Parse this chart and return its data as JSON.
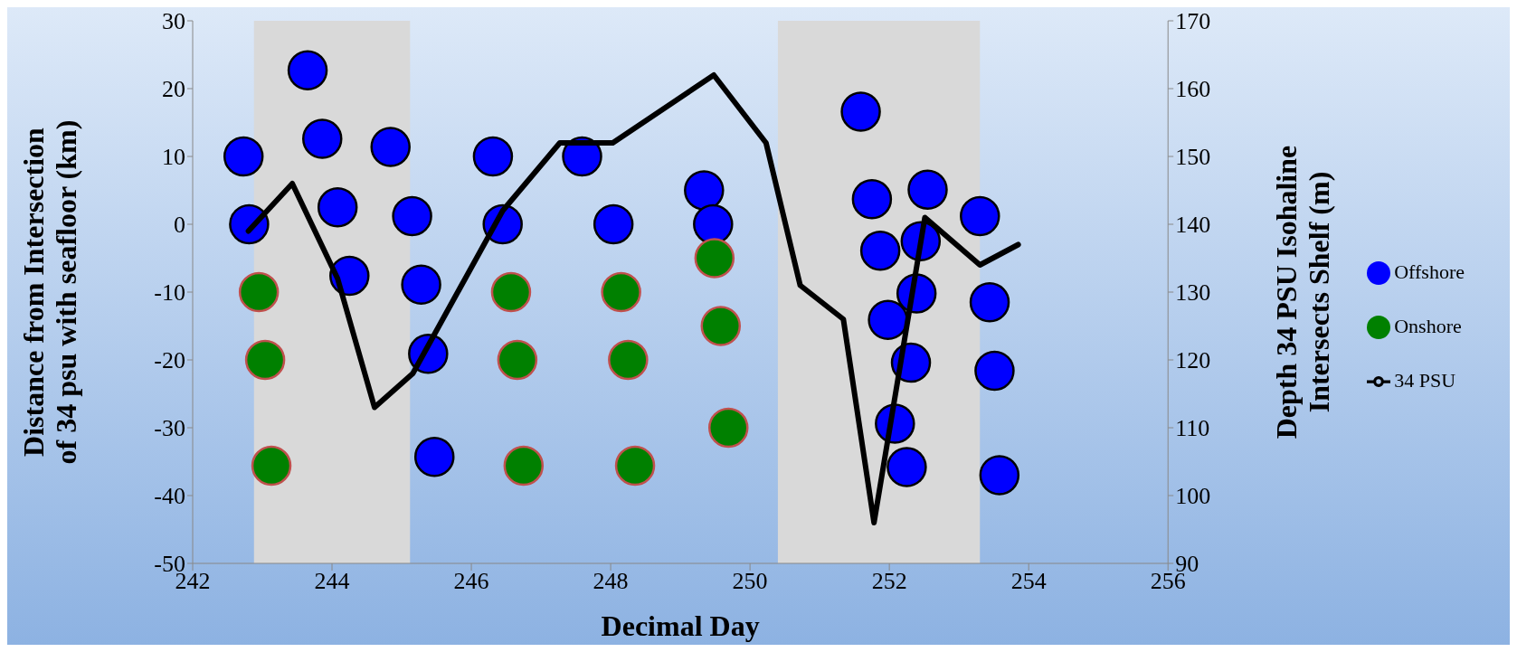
{
  "chart_data": {
    "type": "scatter",
    "xlabel": "Decimal Day",
    "ylabel": "Distance from Intersection of 34 psu with seafloor (km)",
    "y2label": "Depth 34 PSU Isohaline Intersects Shelf (m)",
    "xlim": [
      242,
      256
    ],
    "xticks": [
      242,
      244,
      246,
      248,
      250,
      252,
      254,
      256
    ],
    "ylim": [
      -50,
      30
    ],
    "yticks": [
      -50,
      -40,
      -30,
      -20,
      -10,
      0,
      10,
      20,
      30
    ],
    "y2lim": [
      90,
      170
    ],
    "y2ticks": [
      90,
      100,
      110,
      120,
      130,
      140,
      150,
      160,
      170
    ],
    "legend": "right",
    "marker": "circle",
    "bands": [
      {
        "axis": "x",
        "from": 242.88,
        "to": 245.12,
        "color": "#d9d9d9"
      },
      {
        "axis": "x",
        "from": 250.4,
        "to": 253.3,
        "color": "#d9d9d9"
      }
    ],
    "series": [
      {
        "name": "Offshore",
        "color": "#0000ff",
        "x": [
          242.73,
          242.81,
          243.65,
          243.86,
          244.08,
          244.25,
          244.84,
          245.15,
          245.28,
          245.38,
          245.47,
          246.31,
          246.45,
          247.59,
          248.04,
          249.34,
          249.47,
          251.59,
          251.75,
          252.55,
          253.3,
          251.87,
          252.45,
          252.39,
          251.98,
          253.44,
          252.31,
          253.51,
          252.08,
          252.25,
          253.58
        ],
        "values": [
          10,
          0,
          22.7,
          12.6,
          2.5,
          -7.6,
          11.4,
          1.2,
          -8.9,
          -19.1,
          -34.3,
          10,
          0,
          10,
          0,
          5,
          0,
          16.6,
          3.7,
          5.1,
          1.2,
          -3.9,
          -2.5,
          -10.2,
          -14.1,
          -11.5,
          -20.4,
          -21.6,
          -29.4,
          -35.8,
          -37
        ]
      },
      {
        "name": "Onshore",
        "color": "#008000",
        "x": [
          242.95,
          243.04,
          243.13,
          246.57,
          246.66,
          246.75,
          248.15,
          248.25,
          248.35,
          249.49,
          249.58,
          249.69
        ],
        "values": [
          -10,
          -20,
          -35.6,
          -10,
          -20,
          -35.6,
          -10,
          -20,
          -35.6,
          -5,
          -15,
          -30
        ]
      },
      {
        "name": "34 PSU",
        "type": "line",
        "axis": "y2",
        "marker": "none",
        "line_style": "solid",
        "color": "#000000",
        "x": [
          242.8,
          243.43,
          244.08,
          244.61,
          245.16,
          246.45,
          247.27,
          248.03,
          249.48,
          250.23,
          250.72,
          251.34,
          251.78,
          252.51,
          253.3,
          253.85
        ],
        "values": [
          139,
          146,
          132,
          113,
          118,
          142,
          152,
          152,
          162,
          152,
          131,
          126,
          96,
          141,
          134,
          137
        ]
      }
    ]
  }
}
